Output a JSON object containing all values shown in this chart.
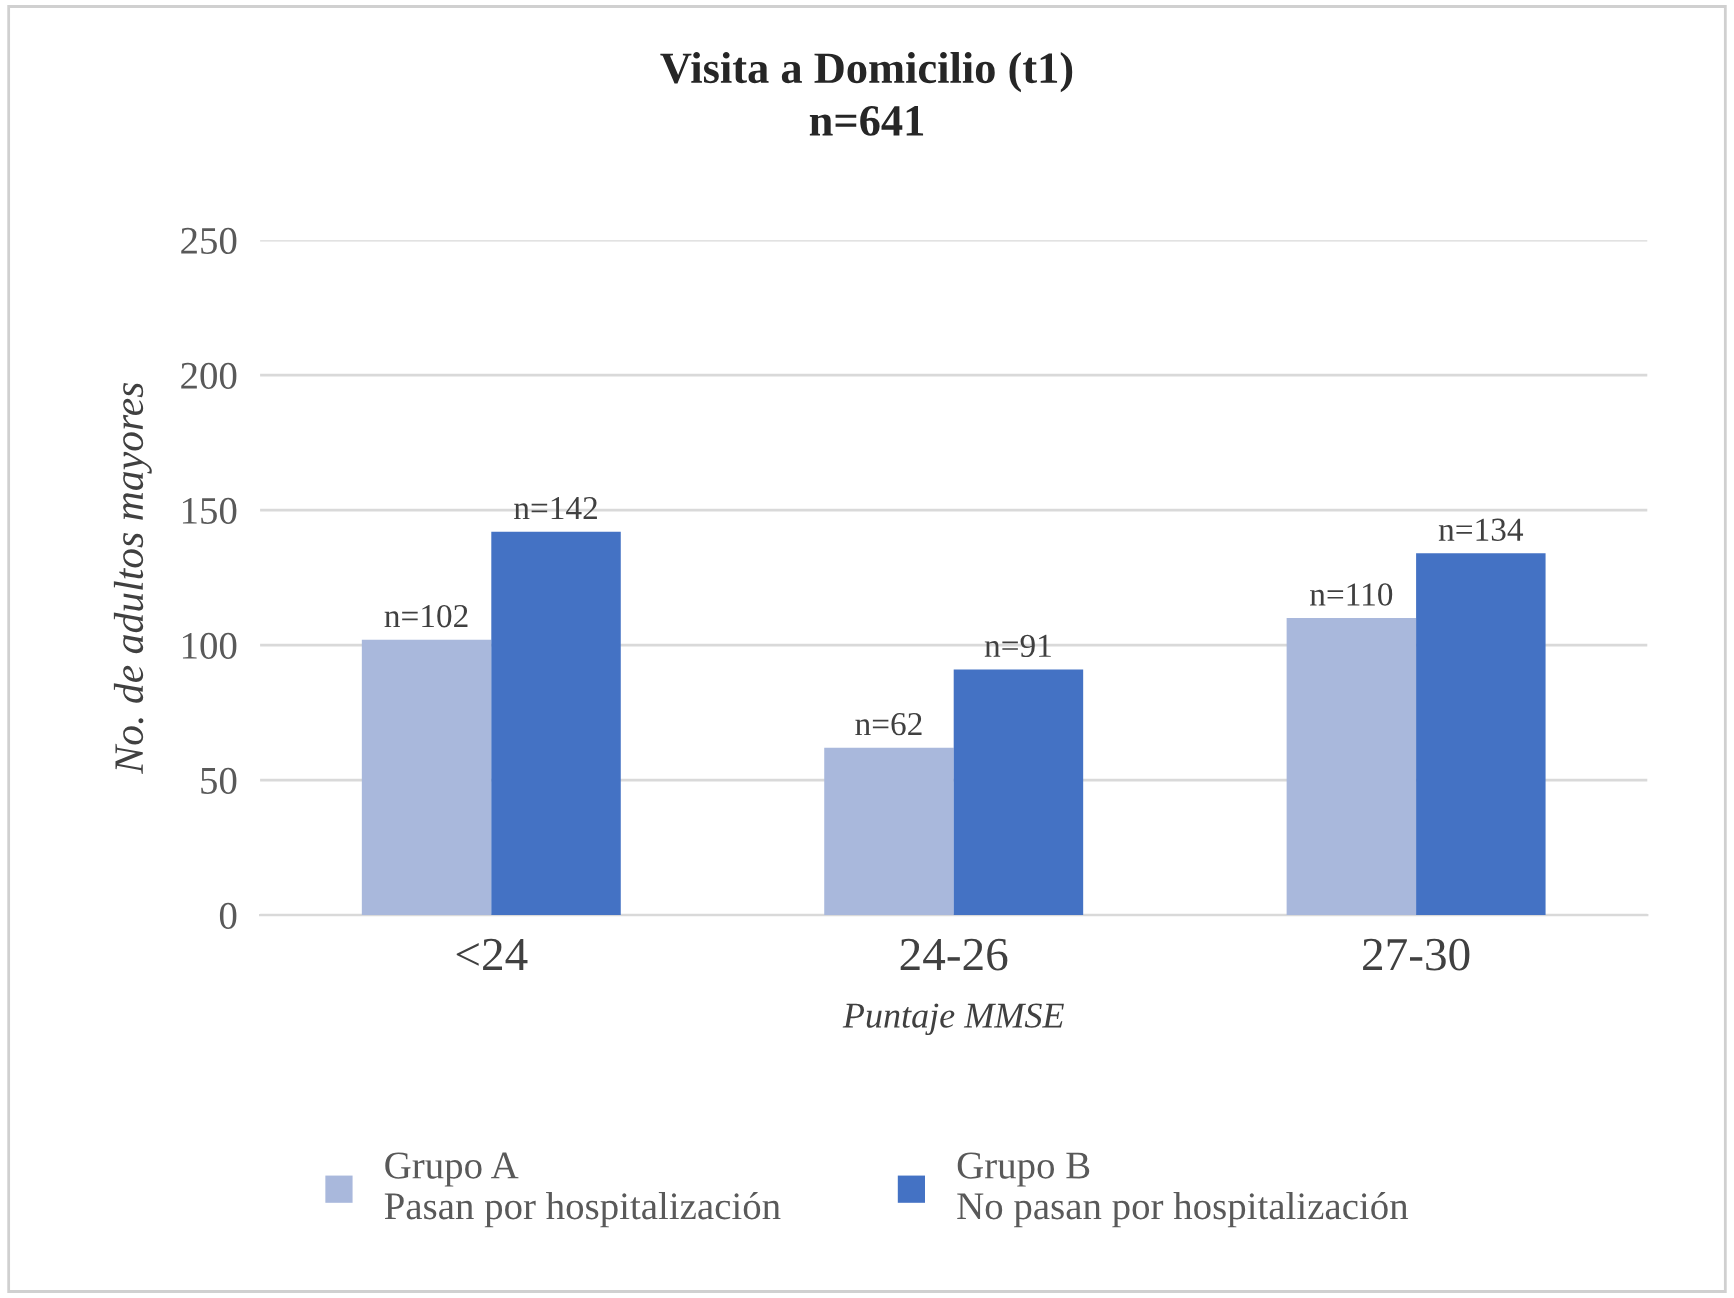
{
  "chart_data": {
    "type": "bar",
    "title": "Visita a Domicilio (t1)\nn=641",
    "xlabel": "Puntaje MMSE",
    "ylabel": "No. de adultos mayores",
    "categories": [
      "<24",
      "24-26",
      "27-30"
    ],
    "series": [
      {
        "name": "Grupo A\nPasan por hospitalización",
        "color": "#a9b8dc",
        "values": [
          102,
          62,
          110
        ],
        "value_labels": [
          "n=102",
          "n=62",
          "n=110"
        ]
      },
      {
        "name": "Grupo B\nNo pasan por hospitalización",
        "color": "#4472c4",
        "values": [
          142,
          91,
          134
        ],
        "value_labels": [
          "n=142",
          "n=91",
          "n=134"
        ]
      }
    ],
    "ylim": [
      0,
      250
    ],
    "yticks": [
      0,
      50,
      100,
      150,
      200,
      250
    ],
    "grid": "y",
    "legend": "bottom"
  }
}
